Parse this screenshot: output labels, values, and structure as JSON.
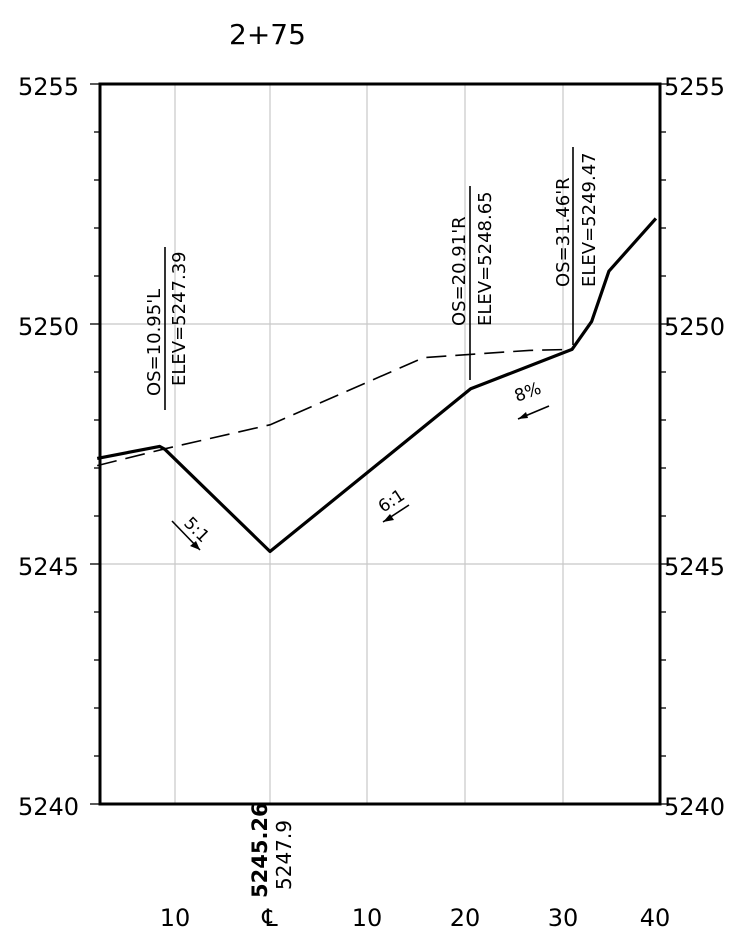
{
  "station_title": "2+75",
  "elevation_labels": {
    "left": [
      "5255",
      "5250",
      "5245",
      "5240"
    ],
    "right": [
      "5255",
      "5250",
      "5245",
      "5240"
    ]
  },
  "offset_labels": [
    "10",
    "℄",
    "10",
    "20",
    "30",
    "40"
  ],
  "centerline_elevations": {
    "proposed": "5245.26",
    "existing": "5247.9"
  },
  "callouts": [
    {
      "offset": "OS=10.95'L",
      "elev": "ELEV=5247.39"
    },
    {
      "offset": "OS=20.91'R",
      "elev": "ELEV=5248.65"
    },
    {
      "offset": "OS=31.46'R",
      "elev": "ELEV=5249.47"
    }
  ],
  "slope_labels": [
    "5:1",
    "6:1",
    "8%"
  ],
  "chart_data": {
    "type": "line",
    "title": "2+75",
    "xlabel": "",
    "ylabel": "",
    "ylim": [
      5240,
      5255
    ],
    "xlim": [
      -18,
      40
    ],
    "x_tick_labels": [
      "10",
      "℄",
      "10",
      "20",
      "30",
      "40"
    ],
    "y_ticks": [
      5240,
      5245,
      5250,
      5255
    ],
    "grid": true,
    "series": [
      {
        "style": "solid",
        "points": [
          [
            -18,
            5247.2
          ],
          [
            -11.5,
            5247.45
          ],
          [
            -10.95,
            5247.39
          ],
          [
            0,
            5245.26
          ],
          [
            20.91,
            5248.65
          ],
          [
            31.46,
            5249.47
          ],
          [
            33.5,
            5250.05
          ],
          [
            35.3,
            5251.1
          ],
          [
            40.2,
            5252.2
          ]
        ]
      },
      {
        "style": "dashed",
        "points": [
          [
            -18,
            5247.05
          ],
          [
            -10.95,
            5247.4
          ],
          [
            0,
            5247.9
          ],
          [
            16,
            5249.3
          ],
          [
            27,
            5249.45
          ],
          [
            31.46,
            5249.47
          ]
        ]
      }
    ]
  }
}
